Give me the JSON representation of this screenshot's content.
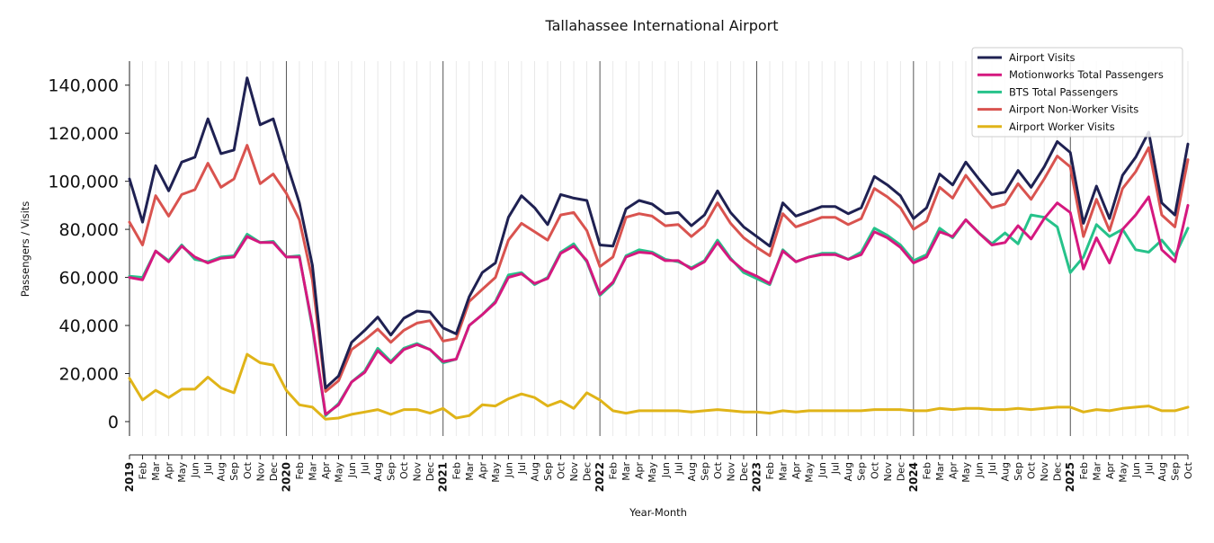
{
  "chart_data": {
    "type": "line",
    "title": "Tallahassee International Airport",
    "xlabel": "Year-Month",
    "ylabel": "Passengers / Visits",
    "ylim": [
      -6000,
      150000
    ],
    "yticks": [
      0,
      20000,
      40000,
      60000,
      80000,
      100000,
      120000,
      140000
    ],
    "ytick_labels": [
      "0",
      "20,000",
      "40,000",
      "60,000",
      "80,000",
      "100,000",
      "120,000",
      "140,000"
    ],
    "x": [
      "2019-01",
      "2019-02",
      "2019-03",
      "2019-04",
      "2019-05",
      "2019-06",
      "2019-07",
      "2019-08",
      "2019-09",
      "2019-10",
      "2019-11",
      "2019-12",
      "2020-01",
      "2020-02",
      "2020-03",
      "2020-04",
      "2020-05",
      "2020-06",
      "2020-07",
      "2020-08",
      "2020-09",
      "2020-10",
      "2020-11",
      "2020-12",
      "2021-01",
      "2021-02",
      "2021-03",
      "2021-04",
      "2021-05",
      "2021-06",
      "2021-07",
      "2021-08",
      "2021-09",
      "2021-10",
      "2021-11",
      "2021-12",
      "2022-01",
      "2022-02",
      "2022-03",
      "2022-04",
      "2022-05",
      "2022-06",
      "2022-07",
      "2022-08",
      "2022-09",
      "2022-10",
      "2022-11",
      "2022-12",
      "2023-01",
      "2023-02",
      "2023-03",
      "2023-04",
      "2023-05",
      "2023-06",
      "2023-07",
      "2023-08",
      "2023-09",
      "2023-10",
      "2023-11",
      "2023-12",
      "2024-01",
      "2024-02",
      "2024-03",
      "2024-04",
      "2024-05",
      "2024-06",
      "2024-07",
      "2024-08",
      "2024-09",
      "2024-10",
      "2024-11",
      "2024-12",
      "2025-01",
      "2025-02",
      "2025-03",
      "2025-04",
      "2025-05",
      "2025-06",
      "2025-07",
      "2025-08",
      "2025-09",
      "2025-10"
    ],
    "xtick_labels": [
      "2019",
      "Feb",
      "Mar",
      "Apr",
      "May",
      "Jun",
      "Jul",
      "Aug",
      "Sep",
      "Oct",
      "Nov",
      "Dec",
      "2020",
      "Feb",
      "Mar",
      "Apr",
      "May",
      "Jun",
      "Jul",
      "Aug",
      "Sep",
      "Oct",
      "Nov",
      "Dec",
      "2021",
      "Feb",
      "Mar",
      "Apr",
      "May",
      "Jun",
      "Jul",
      "Aug",
      "Sep",
      "Oct",
      "Nov",
      "Dec",
      "2022",
      "Feb",
      "Mar",
      "Apr",
      "May",
      "Jun",
      "Jul",
      "Aug",
      "Sep",
      "Oct",
      "Nov",
      "Dec",
      "2023",
      "Feb",
      "Mar",
      "Apr",
      "May",
      "Jun",
      "Jul",
      "Aug",
      "Sep",
      "Oct",
      "Nov",
      "Dec",
      "2024",
      "Feb",
      "Mar",
      "Apr",
      "May",
      "Jun",
      "Jul",
      "Aug",
      "Sep",
      "Oct",
      "Nov",
      "Dec",
      "2025",
      "Feb",
      "Mar",
      "Apr",
      "May",
      "Jun",
      "Jul",
      "Aug",
      "Sep",
      "Oct"
    ],
    "year_boundaries": [
      "2020-01",
      "2021-01",
      "2022-01",
      "2023-01",
      "2024-01",
      "2025-01"
    ],
    "grid": "vertical-monthly",
    "legend_position": "top-right",
    "series": [
      {
        "name": "Airport Visits",
        "color": "#1f2152",
        "values": [
          101000,
          83000,
          106500,
          96000,
          108000,
          110000,
          126000,
          111500,
          113000,
          143000,
          123500,
          126000,
          108000,
          91000,
          65000,
          14000,
          19000,
          33000,
          38000,
          43500,
          36000,
          43000,
          46000,
          45500,
          39000,
          36500,
          52000,
          62000,
          66000,
          85000,
          94000,
          89000,
          82000,
          94500,
          93000,
          92000,
          73500,
          73000,
          88500,
          92000,
          90500,
          86500,
          87000,
          81500,
          86000,
          96000,
          87000,
          81000,
          77000,
          73000,
          91000,
          85500,
          87500,
          89500,
          89500,
          86500,
          89000,
          102000,
          98500,
          94000,
          84500,
          89000,
          103000,
          98500,
          108000,
          101000,
          94500,
          95500,
          104500,
          97500,
          106000,
          116500,
          112000,
          82500,
          98000,
          84500,
          102500,
          110000,
          120500,
          91000,
          86000,
          115500
        ]
      },
      {
        "name": "Motionworks Total Passengers",
        "color": "#d5187f",
        "values": [
          60000,
          59000,
          71000,
          66500,
          73000,
          68500,
          66000,
          68000,
          68500,
          77000,
          74500,
          74500,
          68500,
          68500,
          40000,
          3000,
          7000,
          16500,
          20500,
          29500,
          24500,
          30000,
          32000,
          30000,
          25000,
          26000,
          40000,
          44500,
          49500,
          60000,
          61500,
          57500,
          59500,
          70000,
          73000,
          67000,
          53000,
          58000,
          68500,
          70500,
          70000,
          67000,
          67000,
          63500,
          66500,
          74500,
          67500,
          63000,
          60500,
          57500,
          71000,
          66500,
          68500,
          69500,
          69500,
          67500,
          69500,
          79000,
          76500,
          72500,
          66000,
          68500,
          79000,
          77000,
          84000,
          78500,
          73500,
          74500,
          81500,
          76000,
          84500,
          91000,
          87000,
          63500,
          76500,
          66000,
          80000,
          86000,
          93500,
          71500,
          66500,
          90000
        ]
      },
      {
        "name": "BTS Total Passengers",
        "color": "#26c28a",
        "values": [
          60500,
          60000,
          71000,
          67000,
          73500,
          67500,
          66500,
          68500,
          69000,
          78000,
          74500,
          75000,
          68500,
          69000,
          39000,
          2500,
          7500,
          16500,
          21000,
          30500,
          25000,
          30500,
          32500,
          30000,
          24500,
          26000,
          40000,
          44500,
          50000,
          61000,
          62000,
          57000,
          60000,
          70500,
          74000,
          66500,
          52500,
          57500,
          69000,
          71500,
          70500,
          67500,
          66500,
          64000,
          67000,
          75500,
          68000,
          62000,
          59500,
          57000,
          71500,
          66500,
          68500,
          70000,
          70000,
          67500,
          70500,
          80500,
          77500,
          73500,
          67000,
          69500,
          80500,
          76500,
          84000,
          78500,
          74000,
          78500,
          74000,
          86000,
          85000,
          81000,
          62000,
          68500,
          82000,
          77000,
          80000,
          71500,
          70500,
          75500,
          69000,
          80500
        ]
      },
      {
        "name": "Airport Non-Worker Visits",
        "color": "#d9534f",
        "values": [
          83000,
          73500,
          94000,
          85500,
          94500,
          96500,
          107500,
          97500,
          101000,
          115000,
          99000,
          103000,
          95000,
          84000,
          59000,
          12500,
          17000,
          30000,
          34000,
          38500,
          33000,
          38000,
          41000,
          42000,
          33500,
          34500,
          50000,
          55000,
          60000,
          75500,
          82500,
          79000,
          75500,
          86000,
          87000,
          79500,
          64500,
          68500,
          85000,
          86500,
          85500,
          81500,
          82000,
          77000,
          81500,
          91000,
          82500,
          76500,
          72500,
          69000,
          86500,
          81000,
          83000,
          85000,
          85000,
          82000,
          84500,
          97000,
          93500,
          89000,
          80000,
          83500,
          97500,
          93000,
          102500,
          95500,
          89000,
          90500,
          99000,
          92500,
          101000,
          110500,
          106000,
          77000,
          92500,
          79500,
          97000,
          104000,
          114000,
          86000,
          81000,
          109000
        ]
      },
      {
        "name": "Airport Worker Visits",
        "color": "#e0b418",
        "values": [
          18000,
          9000,
          13000,
          10000,
          13500,
          13500,
          18500,
          14000,
          12000,
          28000,
          24500,
          23500,
          13000,
          7000,
          6000,
          1000,
          1500,
          3000,
          4000,
          5000,
          3000,
          5000,
          5000,
          3500,
          5500,
          1500,
          2500,
          7000,
          6500,
          9500,
          11500,
          10000,
          6500,
          8500,
          5500,
          12000,
          9000,
          4500,
          3500,
          4500,
          4500,
          4500,
          4500,
          4000,
          4500,
          5000,
          4500,
          4000,
          4000,
          3500,
          4500,
          4000,
          4500,
          4500,
          4500,
          4500,
          4500,
          5000,
          5000,
          5000,
          4500,
          4500,
          5500,
          5000,
          5500,
          5500,
          5000,
          5000,
          5500,
          5000,
          5500,
          6000,
          6000,
          4000,
          5000,
          4500,
          5500,
          6000,
          6500,
          4500,
          4500,
          6000
        ]
      }
    ]
  }
}
